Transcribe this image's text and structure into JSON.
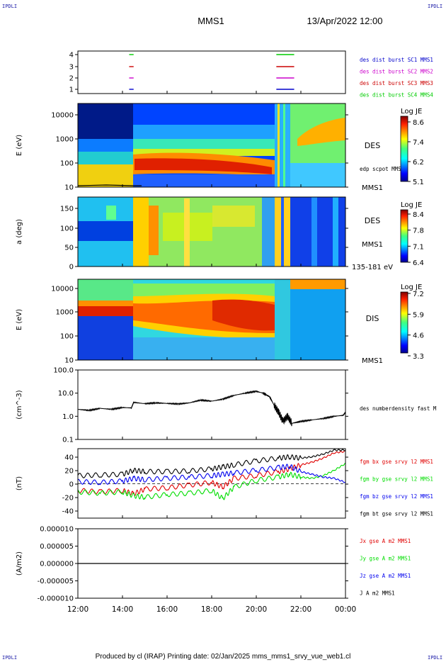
{
  "header": {
    "corner_tl": "IPDLI",
    "corner_tr": "IPDLI",
    "corner_bl": "IPDLI",
    "corner_br": "IPDLI",
    "spacecraft": "MMS1",
    "datetime": "13/Apr/2022 12:00",
    "footer": "Produced by cl (IRAP)   Printing date: 02/Jan/2025   mms_mms1_srvy_vue_web1.cl"
  },
  "colors": {
    "mms1": "#0000cc",
    "mms2": "#cc00cc",
    "mms3": "#cc0000",
    "mms4": "#00cc00",
    "bx": "#e00000",
    "by": "#00dd00",
    "bz": "#0000ee",
    "bt": "#000000"
  },
  "chart_data": [
    {
      "type": "line",
      "panel": "burst",
      "yticks": [
        "4",
        "3",
        "2",
        "1"
      ],
      "legend": [
        "des dist burst SC1 MMS1",
        "des dist burst SC2 MMS2",
        "des dist burst SC3 MMS3",
        "des dist burst SC4 MMS4"
      ],
      "segments": [
        {
          "sc": 4,
          "x": [
            [
              14.3,
              14.5
            ],
            [
              20.9,
              21.7
            ]
          ]
        },
        {
          "sc": 3,
          "x": [
            [
              14.3,
              14.5
            ],
            [
              20.9,
              21.7
            ]
          ]
        },
        {
          "sc": 2,
          "x": [
            [
              14.3,
              14.5
            ],
            [
              20.9,
              21.7
            ]
          ]
        },
        {
          "sc": 1,
          "x": [
            [
              14.3,
              14.5
            ],
            [
              20.9,
              21.7
            ]
          ]
        }
      ]
    },
    {
      "type": "heatmap",
      "panel": "des_energy",
      "ylabel": "E (eV)",
      "yticks": [
        "10000",
        "1000",
        "100",
        "10"
      ],
      "side_label": "DES",
      "bottom_label": "MMS1",
      "overlay_label": "edp scpot MMS1",
      "colorbar": {
        "title": "Log JE",
        "ticks": [
          "8.6",
          "7.4",
          "6.2",
          "5.1"
        ]
      }
    },
    {
      "type": "heatmap",
      "panel": "des_pitch",
      "ylabel": "a (deg)",
      "yticks": [
        "150",
        "100",
        "50",
        "0"
      ],
      "side_label": "DES",
      "bottom_label": "MMS1",
      "range_label": "135-181 eV",
      "colorbar": {
        "title": "Log JE",
        "ticks": [
          "8.4",
          "7.8",
          "7.1",
          "6.4"
        ]
      }
    },
    {
      "type": "heatmap",
      "panel": "dis_energy",
      "ylabel": "E (eV)",
      "yticks": [
        "10000",
        "1000",
        "100",
        "10"
      ],
      "side_label": "DIS",
      "bottom_label": "MMS1",
      "colorbar": {
        "title": "Log JE",
        "ticks": [
          "7.2",
          "5.9",
          "4.6",
          "3.3"
        ]
      }
    },
    {
      "type": "line",
      "panel": "density",
      "ylabel": "(cm^-3)",
      "yticks": [
        "100.0",
        "10.0",
        "1.0",
        "0.1"
      ],
      "legend": [
        "des numberdensity fast M"
      ],
      "series": [
        {
          "name": "des numberdensity fast M",
          "x": [
            12.0,
            12.5,
            13.0,
            13.5,
            14.0,
            14.4,
            14.5,
            15.0,
            15.5,
            16.0,
            16.5,
            17.0,
            17.5,
            18.0,
            18.5,
            19.0,
            19.5,
            20.0,
            20.3,
            20.6,
            20.8,
            21.0,
            21.2,
            21.4,
            21.6,
            22.0,
            22.5,
            23.0,
            23.5,
            23.9,
            24.0
          ],
          "y": [
            2.0,
            1.8,
            2.2,
            2.0,
            2.4,
            2.3,
            4.0,
            3.5,
            3.8,
            3.6,
            3.4,
            3.8,
            5.0,
            4.5,
            5.5,
            8.0,
            10.0,
            12.0,
            10.0,
            7.0,
            3.0,
            1.5,
            0.6,
            1.0,
            0.5,
            0.6,
            0.7,
            0.8,
            1.0,
            1.1,
            1.5
          ]
        }
      ]
    },
    {
      "type": "line",
      "panel": "magnetic_field",
      "ylabel": "(nT)",
      "yticks": [
        "40",
        "20",
        "0",
        "-20",
        "-40"
      ],
      "legend": [
        "fgm bx gse srvy l2 MMS1",
        "fgm by gse srvy l2 MMS1",
        "fgm bz gse srvy l2 MMS1",
        "fgm bt gse srvy l2 MMS1"
      ],
      "series": [
        {
          "name": "fgm bx gse srvy l2 MMS1",
          "x": [
            12.0,
            13.0,
            14.0,
            14.5,
            15.0,
            16.0,
            17.0,
            18.0,
            18.5,
            19.0,
            20.0,
            21.0,
            21.5,
            22.0,
            22.5,
            23.0,
            23.5,
            24.0
          ],
          "y": [
            -10,
            -12,
            -10,
            -15,
            -8,
            -6,
            -2,
            2,
            -5,
            8,
            12,
            18,
            22,
            28,
            32,
            38,
            46,
            48
          ]
        },
        {
          "name": "fgm by gse srvy l2 MMS1",
          "x": [
            12.0,
            13.0,
            14.0,
            14.5,
            15.0,
            16.0,
            17.0,
            18.0,
            18.5,
            19.0,
            20.0,
            21.0,
            21.5,
            22.0,
            22.5,
            23.0,
            23.5,
            24.0
          ],
          "y": [
            -12,
            -14,
            -12,
            -18,
            -20,
            -16,
            -14,
            -10,
            -22,
            -5,
            5,
            10,
            14,
            10,
            8,
            12,
            20,
            30
          ]
        },
        {
          "name": "fgm bz gse srvy l2 MMS1",
          "x": [
            12.0,
            13.0,
            14.0,
            14.5,
            15.0,
            16.0,
            17.0,
            18.0,
            18.5,
            19.0,
            20.0,
            21.0,
            21.5,
            22.0,
            22.5,
            23.0,
            23.5,
            24.0
          ],
          "y": [
            3,
            2,
            4,
            8,
            6,
            8,
            10,
            12,
            14,
            16,
            20,
            24,
            26,
            18,
            14,
            10,
            8,
            2
          ]
        },
        {
          "name": "fgm bt gse srvy l2 MMS1",
          "x": [
            12.0,
            13.0,
            14.0,
            14.5,
            15.0,
            16.0,
            17.0,
            18.0,
            18.5,
            19.0,
            20.0,
            21.0,
            21.5,
            22.0,
            22.5,
            23.0,
            23.5,
            24.0
          ],
          "y": [
            12,
            13,
            14,
            20,
            18,
            18,
            19,
            22,
            25,
            28,
            34,
            38,
            40,
            38,
            40,
            44,
            50,
            50
          ]
        }
      ]
    },
    {
      "type": "line",
      "panel": "current",
      "ylabel": "(A/m2)",
      "yticks": [
        "0.000010",
        "0.000005",
        "0.000000",
        "-0.000005",
        "-0.000010"
      ],
      "legend": [
        "Jx gse A m2 MMS1",
        "Jy gse A m2 MMS1",
        "Jz gse A m2 MMS1",
        "J A m2 MMS1"
      ],
      "series": [
        {
          "name": "J A m2 MMS1",
          "x": [
            12.0,
            24.0
          ],
          "y": [
            0.0,
            0.0
          ]
        }
      ]
    }
  ],
  "xaxis": {
    "ticks": [
      "12:00",
      "14:00",
      "16:00",
      "18:00",
      "20:00",
      "22:00",
      "00:00"
    ],
    "range": [
      12,
      24
    ]
  }
}
